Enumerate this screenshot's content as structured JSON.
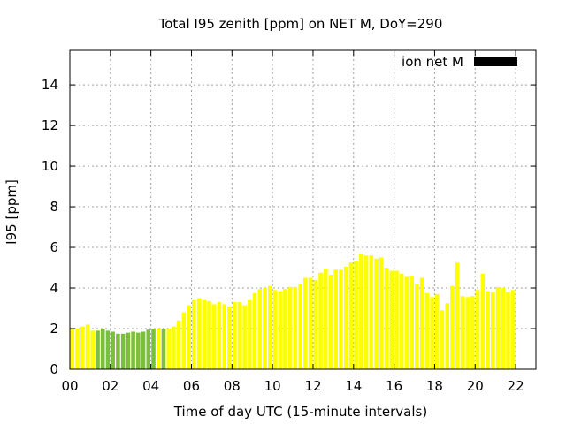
{
  "chart_data": {
    "type": "bar",
    "title": "Total I95 zenith [ppm] on NET M, DoY=290",
    "xlabel": "Time of day UTC (15-minute intervals)",
    "ylabel": "I95 [ppm]",
    "xlim": [
      0,
      23
    ],
    "ylim": [
      0,
      15.7
    ],
    "x_ticks": [
      {
        "value": 0,
        "label": "00"
      },
      {
        "value": 2,
        "label": "02"
      },
      {
        "value": 4,
        "label": "04"
      },
      {
        "value": 6,
        "label": "06"
      },
      {
        "value": 8,
        "label": "08"
      },
      {
        "value": 10,
        "label": "10"
      },
      {
        "value": 12,
        "label": "12"
      },
      {
        "value": 14,
        "label": "14"
      },
      {
        "value": 16,
        "label": "16"
      },
      {
        "value": 18,
        "label": "18"
      },
      {
        "value": 20,
        "label": "20"
      },
      {
        "value": 22,
        "label": "22"
      }
    ],
    "y_ticks": [
      0,
      2,
      4,
      6,
      8,
      10,
      12,
      14
    ],
    "grid": true,
    "legend": {
      "label": "ion net M",
      "color": "#000000",
      "placement": "top-right"
    },
    "colors": {
      "green": "#7cbf3c",
      "yellow": "#ffff00",
      "orange": "#ffa500"
    },
    "interval_hours": 0.25,
    "values": [
      2.0,
      2.0,
      2.1,
      2.2,
      1.9,
      1.9,
      2.0,
      1.9,
      1.85,
      1.75,
      1.75,
      1.8,
      1.85,
      1.8,
      1.85,
      1.95,
      2.0,
      2.0,
      2.0,
      2.0,
      2.1,
      2.4,
      2.8,
      3.15,
      3.4,
      3.5,
      3.4,
      3.35,
      3.2,
      3.3,
      3.2,
      3.1,
      3.3,
      3.3,
      3.15,
      3.4,
      3.75,
      3.95,
      4.0,
      4.1,
      3.9,
      3.85,
      3.95,
      4.05,
      4.05,
      4.2,
      4.5,
      4.5,
      4.4,
      4.75,
      4.95,
      4.65,
      4.9,
      4.9,
      5.05,
      5.25,
      5.35,
      5.7,
      5.6,
      5.6,
      5.45,
      5.5,
      5.0,
      4.85,
      4.85,
      4.7,
      4.55,
      4.6,
      4.2,
      4.5,
      3.75,
      3.55,
      3.7,
      2.9,
      3.25,
      4.1,
      5.25,
      3.6,
      3.55,
      3.6,
      3.9,
      4.7,
      3.85,
      3.8,
      4.05,
      4.0,
      3.8,
      3.9
    ],
    "bar_colors": [
      "yellow",
      "yellow",
      "yellow",
      "yellow",
      "yellow",
      "green",
      "green",
      "green",
      "green",
      "green",
      "green",
      "green",
      "green",
      "green",
      "green",
      "green",
      "green",
      "yellow",
      "green",
      "yellow",
      "yellow",
      "yellow",
      "yellow",
      "yellow",
      "yellow",
      "yellow",
      "yellow",
      "yellow",
      "yellow",
      "yellow",
      "yellow",
      "yellow",
      "yellow",
      "yellow",
      "yellow",
      "yellow",
      "yellow",
      "yellow",
      "yellow",
      "yellow",
      "yellow",
      "yellow",
      "yellow",
      "yellow",
      "yellow",
      "yellow",
      "yellow",
      "yellow",
      "yellow",
      "yellow",
      "yellow",
      "yellow",
      "yellow",
      "yellow",
      "yellow",
      "yellow",
      "yellow",
      "yellow",
      "yellow",
      "yellow",
      "yellow",
      "yellow",
      "yellow",
      "yellow",
      "yellow",
      "yellow",
      "yellow",
      "yellow",
      "yellow",
      "yellow",
      "yellow",
      "yellow",
      "yellow",
      "yellow",
      "yellow",
      "yellow",
      "yellow",
      "yellow",
      "yellow",
      "yellow",
      "yellow",
      "yellow",
      "yellow",
      "yellow",
      "yellow",
      "yellow",
      "yellow",
      "yellow"
    ]
  }
}
